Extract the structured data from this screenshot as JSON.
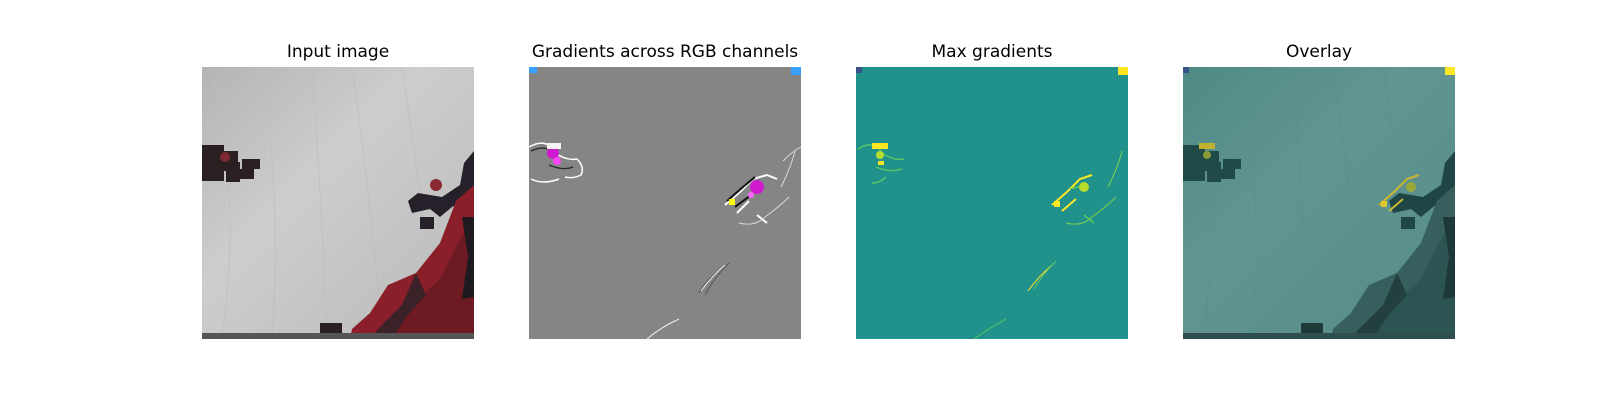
{
  "figure": {
    "background": "#ffffff",
    "panels": [
      {
        "title": "Input image",
        "image": "grayscale backdrop photo with red and black robot arm and gripper",
        "base_color": "#c2c2c2"
      },
      {
        "title": "Gradients across RGB channels",
        "image": "gray gradient map with magenta and white edge highlights",
        "base_color": "#858585"
      },
      {
        "title": "Max gradients",
        "image": "teal gradient magnitude map with yellow edges",
        "base_color": "#21918c"
      },
      {
        "title": "Overlay",
        "image": "input image overlaid with teal gradient map",
        "base_color": "#5a8a87"
      }
    ]
  }
}
